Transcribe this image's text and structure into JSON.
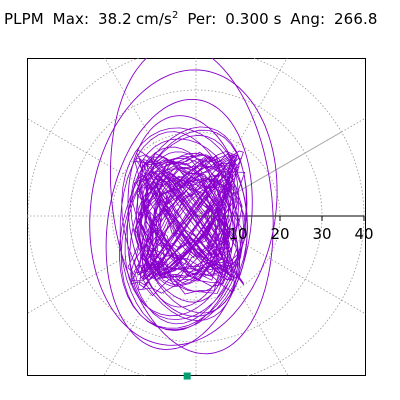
{
  "header": {
    "station": "PLPM",
    "max_label": "Max:",
    "max_value": "38.2",
    "max_unit_base": "cm/s",
    "max_unit_exp": "2",
    "per_label": "Per:",
    "per_value": "0.300 s",
    "ang_label": "Ang:",
    "ang_value": "266.8"
  },
  "colors": {
    "trace": "#8800cc",
    "grid": "#999999",
    "axis": "#000000",
    "marker": "#00a070"
  },
  "chart_data": {
    "type": "scatter",
    "title": "",
    "xlabel": "",
    "ylabel": "",
    "radial_ticks": [
      "10",
      "20",
      "30",
      "40"
    ],
    "radial_tick_values": [
      10,
      20,
      30,
      40
    ],
    "rlim": [
      0,
      40
    ],
    "grid": true,
    "max_value": 38.2,
    "max_angle_deg": 266.8,
    "marker_point": {
      "x": -2.1,
      "y": -38.1
    },
    "outer_loops": [
      {
        "center": [
          -3,
          2
        ],
        "rx": 22,
        "ry": 33
      },
      {
        "center": [
          -1,
          4
        ],
        "rx": 19,
        "ry": 37
      },
      {
        "center": [
          -4,
          -2
        ],
        "rx": 17,
        "ry": 30
      },
      {
        "center": [
          -2,
          0
        ],
        "rx": 14,
        "ry": 24
      }
    ]
  }
}
